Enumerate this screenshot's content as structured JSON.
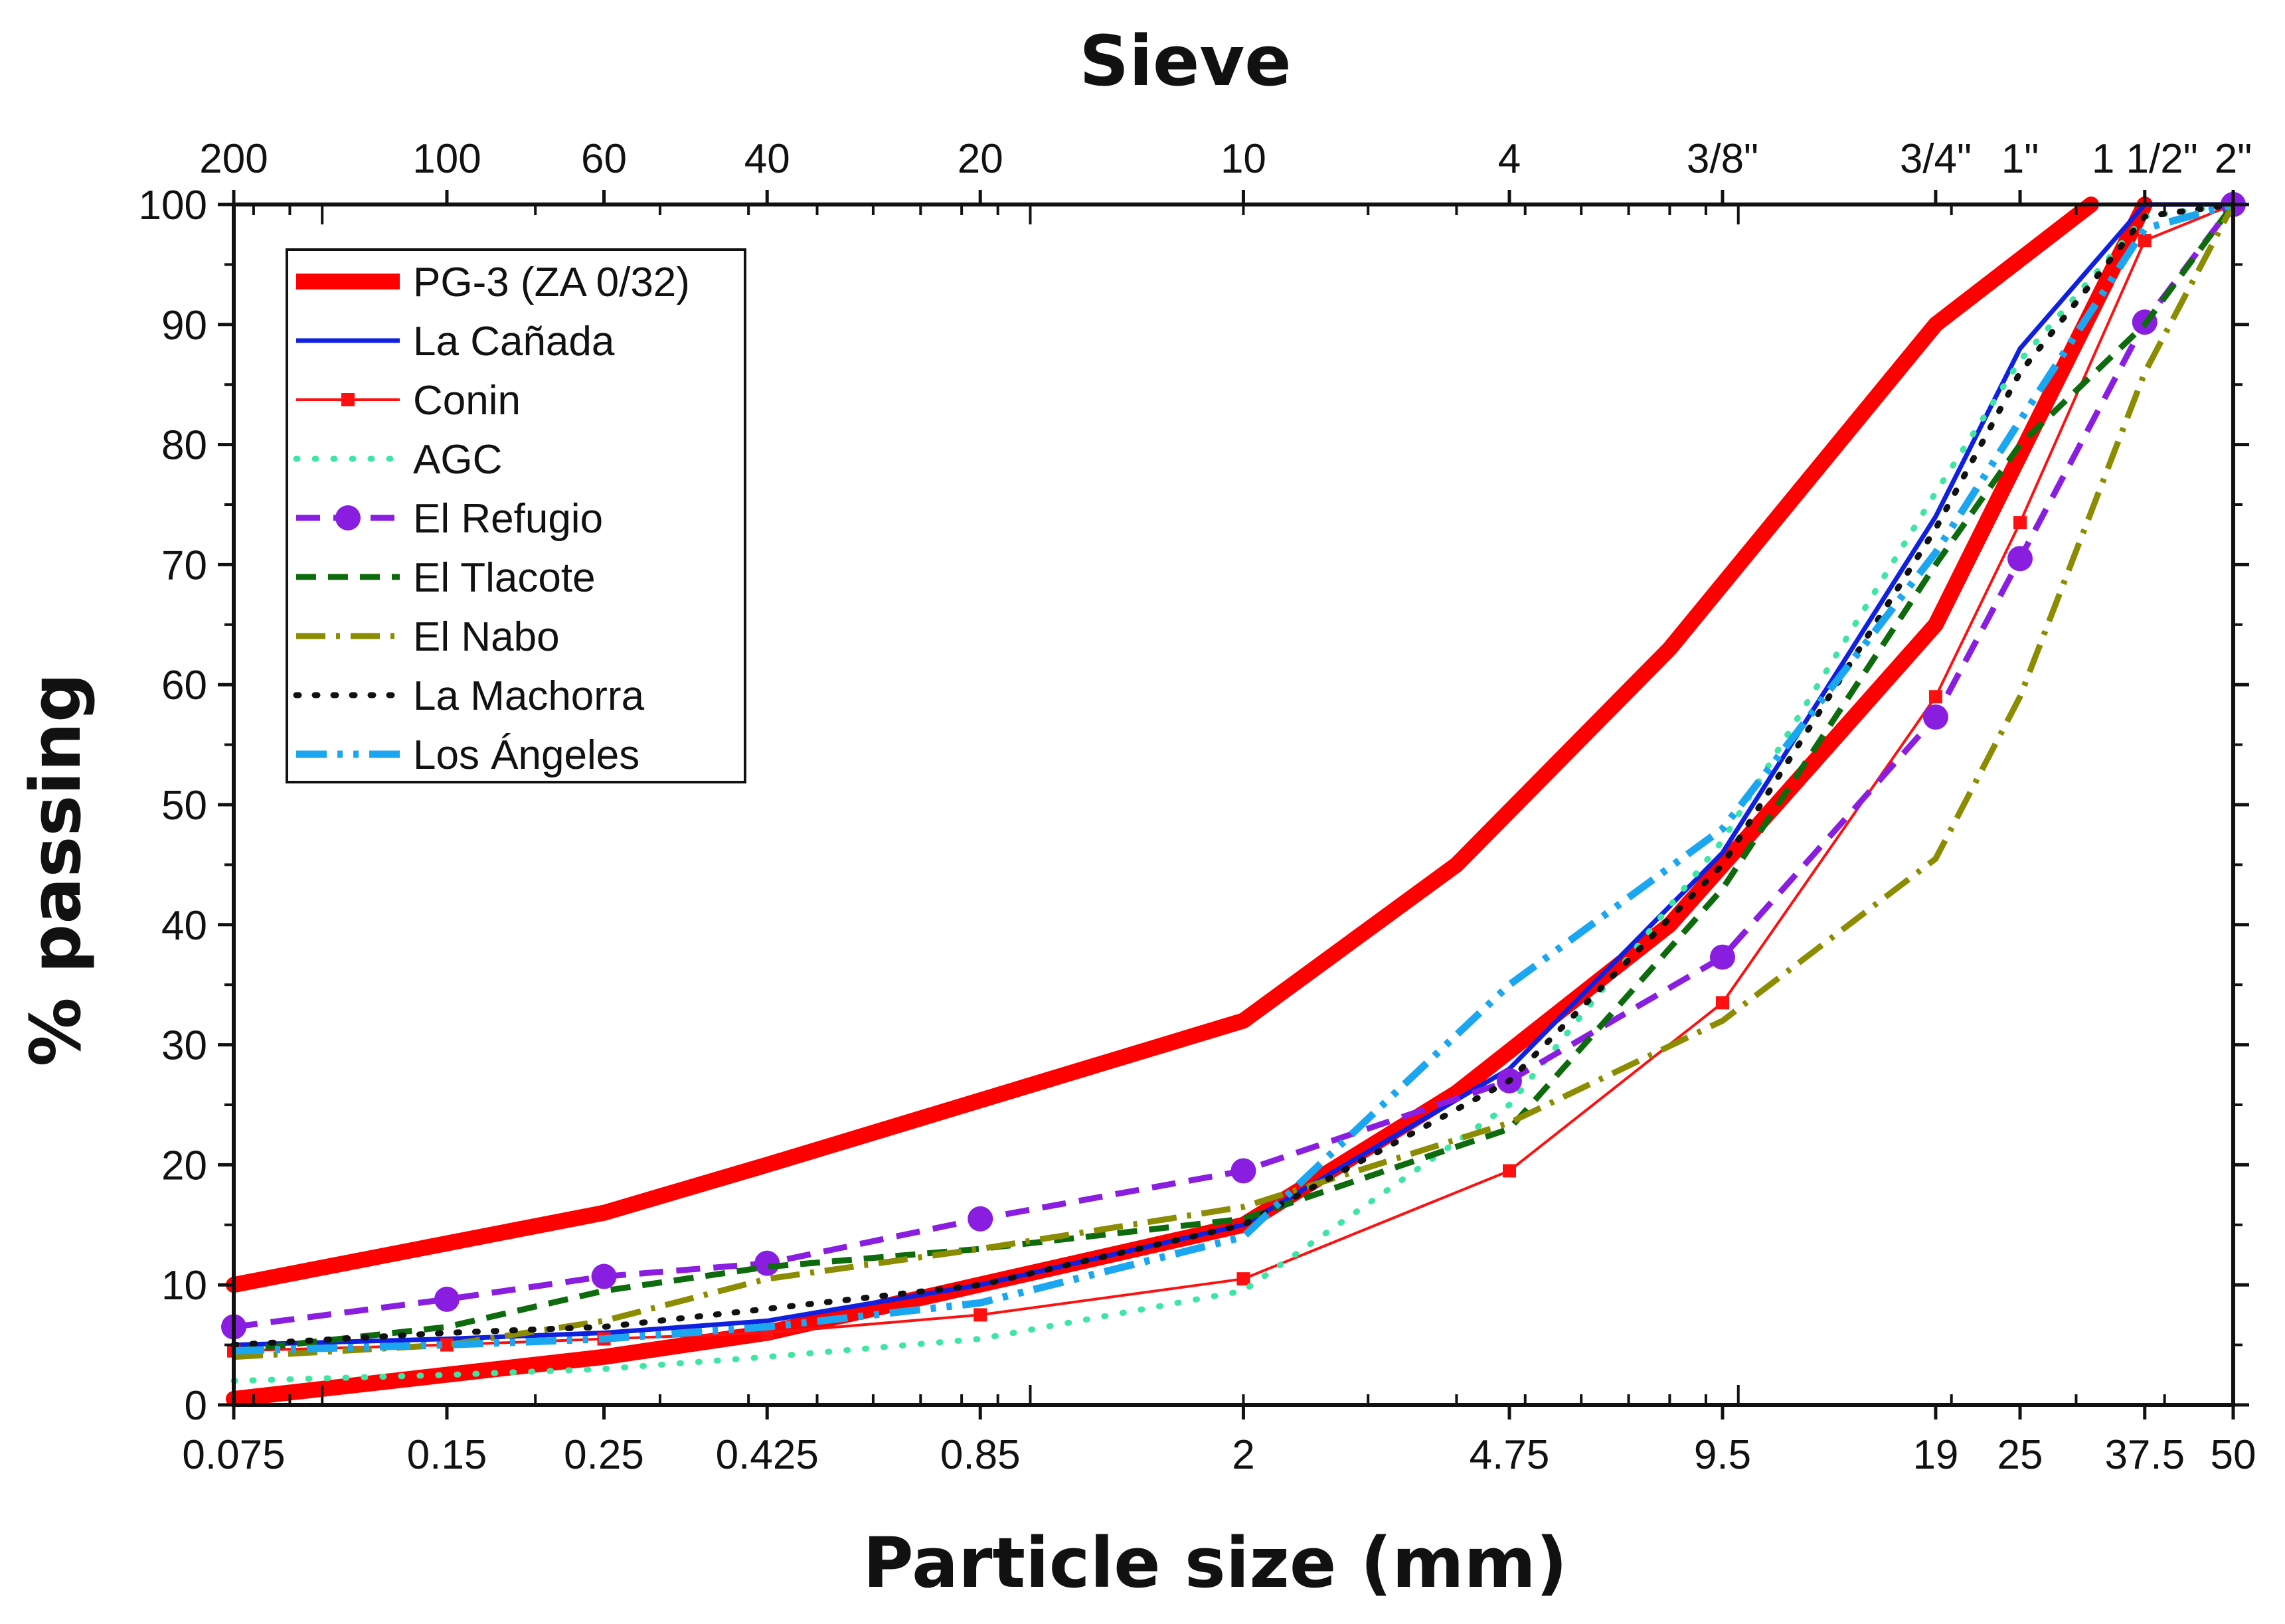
{
  "chart_data": {
    "type": "line",
    "x_scale": "log",
    "xlim": [
      0.075,
      50
    ],
    "ylim": [
      0,
      100
    ],
    "xlabel": "Particle size (mm)",
    "ylabel": "% passing",
    "top_axis_title": "Sieve",
    "x_ticks": [
      {
        "value": 0.075,
        "label": "0.075"
      },
      {
        "value": 0.15,
        "label": "0.15"
      },
      {
        "value": 0.25,
        "label": "0.25"
      },
      {
        "value": 0.425,
        "label": "0.425"
      },
      {
        "value": 0.85,
        "label": "0.85"
      },
      {
        "value": 2,
        "label": "2"
      },
      {
        "value": 4.75,
        "label": "4.75"
      },
      {
        "value": 9.5,
        "label": "9.5"
      },
      {
        "value": 19,
        "label": "19"
      },
      {
        "value": 25,
        "label": "25"
      },
      {
        "value": 37.5,
        "label": "37.5"
      },
      {
        "value": 50,
        "label": "50"
      }
    ],
    "top_ticks": [
      {
        "value": 0.075,
        "label": "200"
      },
      {
        "value": 0.15,
        "label": "100"
      },
      {
        "value": 0.25,
        "label": "60"
      },
      {
        "value": 0.425,
        "label": "40"
      },
      {
        "value": 0.85,
        "label": "20"
      },
      {
        "value": 2,
        "label": "10"
      },
      {
        "value": 4.75,
        "label": "4"
      },
      {
        "value": 9.5,
        "label": "3/8\""
      },
      {
        "value": 19,
        "label": "3/4\""
      },
      {
        "value": 25,
        "label": "1\""
      },
      {
        "value": 37.5,
        "label": "1 1/2\""
      },
      {
        "value": 50,
        "label": "2\""
      }
    ],
    "y_ticks": [
      0,
      10,
      20,
      30,
      40,
      50,
      60,
      70,
      80,
      90,
      100
    ],
    "grid": false,
    "legend_position": "top-left",
    "series": [
      {
        "name": "PG-3 (ZA 0/32)",
        "color": "#ff0000",
        "width": 24,
        "dash": "",
        "marker": "none",
        "x": [
          0.075,
          0.25,
          0.425,
          2,
          4,
          8,
          19,
          31.5
        ],
        "y": [
          10,
          16,
          20,
          32,
          45,
          63,
          90,
          100
        ]
      },
      {
        "name": "PG-3 (ZA 0/32)",
        "color": "#ff0000",
        "width": 24,
        "dash": "",
        "marker": "none",
        "legend": false,
        "x": [
          0.075,
          0.25,
          0.425,
          2,
          4,
          8,
          19,
          37.5
        ],
        "y": [
          0.5,
          4,
          6,
          15,
          26,
          40,
          65,
          100
        ]
      },
      {
        "name": "La Cañada",
        "color": "#1020e0",
        "width": 7,
        "dash": "",
        "marker": "none",
        "x": [
          0.075,
          0.15,
          0.25,
          0.425,
          0.85,
          2,
          4.75,
          9.5,
          19,
          25,
          37.5,
          50
        ],
        "y": [
          5,
          5.5,
          6,
          7,
          10,
          15,
          28,
          46,
          74,
          88,
          100,
          100
        ]
      },
      {
        "name": "Conin",
        "color": "#ff1010",
        "width": 4,
        "dash": "",
        "marker": "square",
        "x": [
          0.075,
          0.15,
          0.25,
          0.425,
          0.85,
          2,
          4.75,
          9.5,
          19,
          25,
          37.5,
          50
        ],
        "y": [
          4.5,
          5,
          5.5,
          6,
          7.5,
          10.5,
          19.5,
          33.5,
          59,
          73.5,
          97,
          100
        ]
      },
      {
        "name": "AGC",
        "color": "#3ee6a4",
        "width": 9,
        "dash": "2 26",
        "marker": "none",
        "x": [
          0.075,
          0.15,
          0.25,
          0.425,
          0.85,
          2,
          4.75,
          9.5,
          19,
          25,
          37.5,
          50
        ],
        "y": [
          2,
          2.5,
          3,
          4,
          5.5,
          9.5,
          25,
          47,
          76,
          87,
          99,
          100
        ]
      },
      {
        "name": "El Refugio",
        "color": "#8a1ee0",
        "width": 9,
        "dash": "36 20",
        "marker": "circle",
        "x": [
          0.075,
          0.15,
          0.25,
          0.425,
          0.85,
          2,
          4.75,
          9.5,
          19,
          25,
          37.5,
          50
        ],
        "y": [
          6.5,
          8.8,
          10.7,
          11.8,
          15.5,
          19.5,
          27,
          37.3,
          57.3,
          70.5,
          90.2,
          100
        ]
      },
      {
        "name": "El Tlacote",
        "color": "#0d6b0d",
        "width": 9,
        "dash": "30 18",
        "marker": "none",
        "x": [
          0.075,
          0.15,
          0.25,
          0.425,
          0.85,
          2,
          4.75,
          9.5,
          19,
          25,
          37.5,
          50
        ],
        "y": [
          4.5,
          6.5,
          9.5,
          11.5,
          13,
          15.5,
          23,
          43,
          70,
          80,
          90,
          100
        ]
      },
      {
        "name": "El Nabo",
        "color": "#8c8c00",
        "width": 9,
        "dash": "44 16 6 16",
        "marker": "none",
        "x": [
          0.075,
          0.15,
          0.25,
          0.425,
          0.85,
          2,
          4.75,
          9.5,
          19,
          25,
          37.5,
          50
        ],
        "y": [
          4,
          5,
          7,
          10.5,
          13,
          16.5,
          23.5,
          32,
          45.5,
          59,
          86,
          100
        ]
      },
      {
        "name": "La Machorra",
        "color": "#111111",
        "width": 9,
        "dash": "4 24",
        "marker": "none",
        "x": [
          0.075,
          0.15,
          0.25,
          0.425,
          0.85,
          2,
          4.75,
          9.5,
          19,
          25,
          37.5,
          50
        ],
        "y": [
          5,
          6,
          6.5,
          8,
          10,
          15,
          27,
          45,
          73,
          86,
          99,
          100
        ]
      },
      {
        "name": "Los Ángeles",
        "color": "#1aa6f0",
        "width": 11,
        "dash": "46 16 8 16 8 16",
        "marker": "none",
        "x": [
          0.075,
          0.15,
          0.25,
          0.425,
          0.85,
          2,
          4.75,
          9.5,
          19,
          25,
          37.5,
          50
        ],
        "y": [
          4.5,
          5,
          5.5,
          6.5,
          8.5,
          14,
          35,
          48,
          71,
          82,
          98,
          100
        ]
      }
    ]
  }
}
